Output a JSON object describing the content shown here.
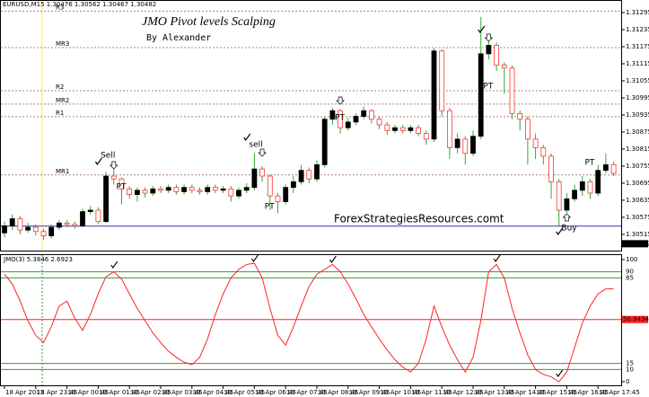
{
  "chart_data": [
    {
      "type": "candlestick",
      "header": "EURUSD,M15  1.30476 1.30562 1.30467 1.30482",
      "title": "JMO Pivot levels Scalping",
      "subtitle": "By Alexander",
      "watermark": "ForexStrategiesResources.comt",
      "categories": [
        "18 Apr 2013",
        null,
        null,
        null,
        "18 Apr 23:45",
        null,
        null,
        null,
        "19 Apr 00:45",
        null,
        null,
        null,
        "19 Apr 01:45",
        null,
        null,
        null,
        "19 Apr 02:45",
        null,
        null,
        null,
        "19 Apr 03:45",
        null,
        null,
        null,
        "19 Apr 04:45",
        null,
        null,
        null,
        "19 Apr 05:45",
        null,
        null,
        null,
        "19 Apr 06:45",
        null,
        null,
        null,
        "19 Apr 07:45",
        null,
        null,
        null,
        "19 Apr 08:45",
        null,
        null,
        null,
        "19 Apr 09:45",
        null,
        null,
        null,
        "19 Apr 10:45",
        null,
        null,
        null,
        "19 Apr 11:45",
        null,
        null,
        null,
        "19 Apr 12:45",
        null,
        null,
        null,
        "19 Apr 13:45",
        null,
        null,
        null,
        "19 Apr 14:45",
        null,
        null,
        null,
        "19 Apr 15:45",
        null,
        null,
        null,
        "19 Apr 16:45",
        null,
        null,
        null,
        "19 Apr 17:45",
        null,
        null
      ],
      "open": [
        1.3052,
        1.30545,
        1.3057,
        1.3053,
        1.3054,
        1.30525,
        1.3051,
        1.3054,
        1.30555,
        1.3055,
        1.30545,
        1.30595,
        1.306,
        1.3056,
        1.3072,
        1.3071,
        1.30675,
        1.30655,
        1.3067,
        1.3066,
        1.30675,
        1.3067,
        1.3068,
        1.30665,
        1.3068,
        1.3067,
        1.30665,
        1.3068,
        1.3067,
        1.30675,
        1.3065,
        1.3067,
        1.3068,
        1.30745,
        1.3072,
        1.3065,
        1.3063,
        1.3068,
        1.307,
        1.3074,
        1.3071,
        1.3076,
        1.3092,
        1.3095,
        1.3089,
        1.3091,
        1.3093,
        1.3095,
        1.3092,
        1.309,
        1.3088,
        1.3089,
        1.3088,
        1.3089,
        1.3087,
        1.3085,
        1.3116,
        1.3095,
        1.3082,
        1.3085,
        1.308,
        1.3086,
        1.3115,
        1.3118,
        1.3111,
        1.311,
        1.3094,
        1.3092,
        1.3085,
        1.3082,
        1.3079,
        1.307,
        1.306,
        1.3064,
        1.3067,
        1.307,
        1.3066,
        1.3074,
        1.3076
      ],
      "high": [
        1.3056,
        1.30585,
        1.3058,
        1.30555,
        1.3055,
        1.30535,
        1.3055,
        1.30565,
        1.30565,
        1.3056,
        1.30605,
        1.30615,
        1.3061,
        1.30735,
        1.30745,
        1.30715,
        1.30685,
        1.3068,
        1.3068,
        1.30685,
        1.30685,
        1.3069,
        1.3069,
        1.3069,
        1.3069,
        1.3068,
        1.3069,
        1.3069,
        1.30685,
        1.30685,
        1.3068,
        1.30695,
        1.308,
        1.30755,
        1.30725,
        1.3066,
        1.3069,
        1.3072,
        1.3076,
        1.3075,
        1.30775,
        1.3093,
        1.3096,
        1.30955,
        1.30925,
        1.3094,
        1.30965,
        1.30955,
        1.3093,
        1.3091,
        1.309,
        1.309,
        1.309,
        1.309,
        1.3088,
        1.3117,
        1.31165,
        1.3096,
        1.3087,
        1.3086,
        1.3088,
        1.3128,
        1.3122,
        1.3119,
        1.3112,
        1.3111,
        1.3095,
        1.3093,
        1.3087,
        1.3083,
        1.308,
        1.3071,
        1.3066,
        1.3069,
        1.3072,
        1.3071,
        1.3076,
        1.308,
        1.3077
      ],
      "low": [
        1.30505,
        1.3053,
        1.30515,
        1.3052,
        1.3051,
        1.30495,
        1.305,
        1.3053,
        1.3054,
        1.30535,
        1.3054,
        1.30585,
        1.3055,
        1.30555,
        1.3069,
        1.3062,
        1.3064,
        1.3063,
        1.30645,
        1.3065,
        1.3066,
        1.3066,
        1.30655,
        1.30655,
        1.3066,
        1.30655,
        1.30655,
        1.3066,
        1.3066,
        1.3063,
        1.3064,
        1.3066,
        1.3067,
        1.307,
        1.306,
        1.3059,
        1.3062,
        1.3066,
        1.3069,
        1.30695,
        1.307,
        1.3075,
        1.309,
        1.3087,
        1.3088,
        1.309,
        1.3092,
        1.30905,
        1.30885,
        1.30865,
        1.3087,
        1.3087,
        1.3087,
        1.3086,
        1.3083,
        1.3084,
        1.3093,
        1.3078,
        1.308,
        1.3076,
        1.3079,
        1.3085,
        1.3113,
        1.3109,
        1.3101,
        1.3092,
        1.3088,
        1.3076,
        1.3078,
        1.3076,
        1.3064,
        1.30545,
        1.3059,
        1.3063,
        1.3065,
        1.3064,
        1.3065,
        1.3073,
        1.3072
      ],
      "close": [
        1.30545,
        1.3057,
        1.3053,
        1.3054,
        1.30525,
        1.3051,
        1.3054,
        1.30555,
        1.3055,
        1.30545,
        1.30595,
        1.306,
        1.3056,
        1.3072,
        1.3071,
        1.30675,
        1.30655,
        1.3067,
        1.3066,
        1.30675,
        1.3067,
        1.3068,
        1.30665,
        1.3068,
        1.3067,
        1.30665,
        1.3068,
        1.3067,
        1.30675,
        1.3065,
        1.3067,
        1.3068,
        1.30745,
        1.3072,
        1.3065,
        1.3063,
        1.3068,
        1.307,
        1.3074,
        1.3071,
        1.3076,
        1.3092,
        1.3095,
        1.3089,
        1.3091,
        1.3093,
        1.3095,
        1.3092,
        1.309,
        1.3088,
        1.3089,
        1.3088,
        1.3089,
        1.3087,
        1.3085,
        1.3116,
        1.3095,
        1.3082,
        1.3085,
        1.308,
        1.3086,
        1.3115,
        1.3118,
        1.3111,
        1.311,
        1.3094,
        1.3092,
        1.3085,
        1.3082,
        1.3079,
        1.307,
        1.306,
        1.3064,
        1.3067,
        1.307,
        1.3066,
        1.3074,
        1.3076,
        1.3073
      ],
      "up_color": "#000000",
      "down_color": "#ff3333",
      "wick_color": "#33aa33",
      "ylim": [
        1.30461,
        1.31314
      ],
      "yticks": [
        1.31295,
        1.31235,
        1.31175,
        1.31115,
        1.31055,
        1.30995,
        1.30935,
        1.30875,
        1.30815,
        1.30755,
        1.30695,
        1.30635,
        1.30575,
        1.30515
      ],
      "levels": [
        {
          "name": "R3",
          "value": 1.313
        },
        {
          "name": "MR3",
          "value": 1.31172
        },
        {
          "name": "R2",
          "value": 1.3102
        },
        {
          "name": "MR2",
          "value": 1.30973
        },
        {
          "name": "R1",
          "value": 1.30929
        },
        {
          "name": "MR1",
          "value": 1.30724
        }
      ],
      "level_color": "#b08080",
      "support_line": 1.30544,
      "support_color": "#3333bb",
      "current_price": 1.30482,
      "annotations": [
        "Sell",
        "sell",
        "PT",
        "PT",
        "PT",
        "PT",
        "PT",
        "Buy"
      ]
    },
    {
      "type": "line",
      "title": "JMO(3) 5.3846 2.6923",
      "values": [
        88,
        80,
        66,
        50,
        38,
        32,
        45,
        62,
        66,
        52,
        42,
        55,
        72,
        86,
        90,
        84,
        72,
        60,
        50,
        40,
        32,
        25,
        20,
        16,
        14,
        20,
        35,
        55,
        72,
        85,
        92,
        96,
        97,
        85,
        60,
        38,
        30,
        45,
        62,
        78,
        88,
        92,
        96,
        90,
        80,
        68,
        55,
        45,
        35,
        26,
        18,
        12,
        8,
        15,
        35,
        62,
        45,
        30,
        18,
        8,
        20,
        50,
        90,
        96,
        85,
        60,
        40,
        22,
        10,
        6,
        4,
        0,
        8,
        28,
        48,
        62,
        72,
        76,
        76
      ],
      "color": "#ff2222",
      "ylim": [
        0,
        100
      ],
      "yticks": [
        0,
        10,
        15,
        85,
        90,
        100
      ],
      "level": {
        "value": 50.9434,
        "label": "50.94340"
      },
      "level_color": "#ff2222",
      "grid_color": "#339933"
    }
  ]
}
